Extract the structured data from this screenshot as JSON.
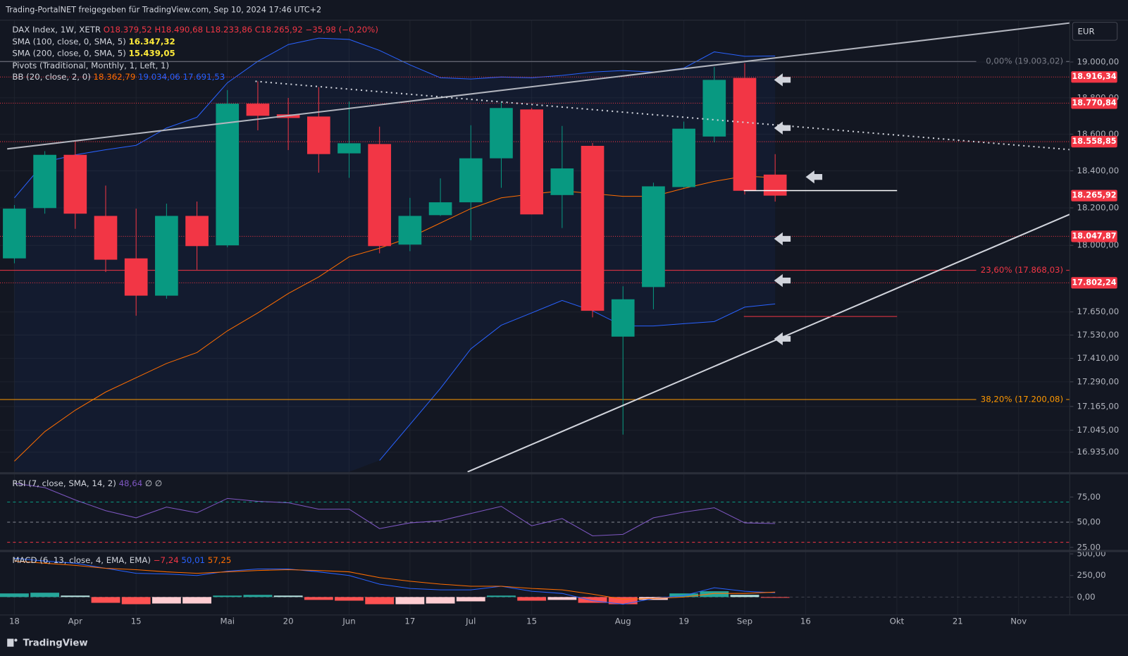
{
  "header": "Trading-PortalNET freigegeben für TradingView.com, Sep 10, 2024 17:46 UTC+2",
  "currency": "EUR",
  "footer": "TradingView",
  "chart_data": [
    {
      "type": "candlestick",
      "legend": {
        "symbol": "DAX Index, 1W, XETR",
        "open_label": "O18.379,52",
        "high_label": "H18.490,68",
        "low_label": "L18.233,86",
        "close_label": "C18.265,92",
        "change_label": "−35,98 (−0,20%)"
      },
      "indicators": [
        {
          "name": "SMA (100, close, 0, SMA, 5)",
          "values_text": [
            "16.347,32"
          ]
        },
        {
          "name": "SMA (200, close, 0, SMA, 5)",
          "values_text": [
            "15.439,05"
          ]
        },
        {
          "name": "Pivots (Traditional, Monthly, 1, Left, 1)",
          "values_text": []
        },
        {
          "name": "BB (20, close, 2, 0)",
          "values_text": [
            "18.362,79",
            "19.034,06",
            "17.691,53"
          ]
        }
      ],
      "categories": [
        "18",
        null,
        "Apr",
        null,
        "15",
        null,
        null,
        "Mai",
        null,
        "20",
        null,
        "Jun",
        null,
        "17",
        null,
        "Jul",
        null,
        "15",
        null,
        null,
        "Aug",
        null,
        "19",
        null,
        "Sep",
        null,
        "16",
        null,
        null,
        "Okt",
        null,
        "21",
        null,
        "Nov"
      ],
      "open": [
        17931,
        18199,
        18487,
        18157,
        17931,
        17735,
        18157,
        18000,
        18768,
        18709,
        18697,
        18495,
        18546,
        18004,
        18161,
        18230,
        18468,
        18736,
        18269,
        18536,
        17522,
        17780,
        18312,
        18587,
        18911,
        18379.52,
        null,
        null,
        null,
        null,
        null,
        null,
        null,
        null
      ],
      "high": [
        18215,
        18507,
        18558,
        18320,
        18196,
        18223,
        18234,
        18843,
        18892,
        18800,
        18860,
        18780,
        18641,
        18254,
        18359,
        18649,
        18780,
        18744,
        18645,
        18552,
        17784,
        18336,
        18669,
        18972,
        18993,
        18490.68,
        null,
        null,
        null,
        null,
        null,
        null,
        null,
        null
      ],
      "low": [
        17905,
        18169,
        18088,
        17859,
        17630,
        17719,
        17871,
        17990,
        18621,
        18513,
        18390,
        18362,
        17958,
        17969,
        18157,
        18027,
        18308,
        18165,
        18092,
        17622,
        17023,
        17664,
        18308,
        18555,
        18272,
        18233.86,
        null,
        null,
        null,
        null,
        null,
        null,
        null,
        null
      ],
      "close": [
        18196,
        18487,
        18169,
        17924,
        17735,
        18157,
        17996,
        18768,
        18701,
        18689,
        18491,
        18550,
        17996,
        18157,
        18230,
        18468,
        18744,
        18165,
        18413,
        17656,
        17716,
        18316,
        18630,
        18900,
        18292,
        18265.92,
        null,
        null,
        null,
        null,
        null,
        null,
        null,
        null
      ],
      "up_color": "#089981",
      "down_color": "#f23645",
      "bb_upper": [
        18254,
        18448,
        18487,
        18515,
        18539,
        18634,
        18693,
        18884,
        19004,
        19098,
        19134,
        19127,
        19065,
        18984,
        18912,
        18905,
        18916,
        18912,
        18925,
        18944,
        18952,
        18944,
        18966,
        19057,
        19032,
        19034.06,
        null,
        null,
        null,
        null,
        null,
        null,
        null,
        null
      ],
      "bb_middle": [
        16890,
        17038,
        17146,
        17238,
        17311,
        17384,
        17440,
        17552,
        17645,
        17746,
        17833,
        17939,
        17985,
        18042,
        18119,
        18196,
        18254,
        18274,
        18292,
        18277,
        18262,
        18262,
        18305,
        18343,
        18371,
        18362.79,
        null,
        null,
        null,
        null,
        null,
        null,
        null,
        null
      ],
      "bb_lower": [
        null,
        null,
        null,
        null,
        null,
        null,
        null,
        null,
        null,
        null,
        null,
        null,
        16894,
        17074,
        17256,
        17459,
        17581,
        17645,
        17710,
        17656,
        17577,
        17577,
        17589,
        17600,
        17675,
        17691.53,
        null,
        null,
        null,
        null,
        null,
        null,
        null,
        null
      ],
      "bb_band_color": "#2962ff",
      "bb_middle_color": "#ff6d00",
      "log_scale": true,
      "ylim": [
        16837,
        19236
      ],
      "yticks": [
        {
          "value": 19000,
          "label": "19.000,00"
        },
        {
          "value": 18800,
          "label": "18.800,00"
        },
        {
          "value": 18600,
          "label": "18.600,00"
        },
        {
          "value": 18400,
          "label": "18.400,00"
        },
        {
          "value": 18200,
          "label": "18.200,00"
        },
        {
          "value": 18000,
          "label": "18.000,00"
        },
        {
          "value": 17650,
          "label": "17.650,00"
        },
        {
          "value": 17530,
          "label": "17.530,00"
        },
        {
          "value": 17410,
          "label": "17.410,00"
        },
        {
          "value": 17290,
          "label": "17.290,00"
        },
        {
          "value": 17165,
          "label": "17.165,00"
        },
        {
          "value": 17045,
          "label": "17.045,00"
        },
        {
          "value": 16935,
          "label": "16.935,00"
        }
      ],
      "grid": true,
      "pivot_levels": [
        {
          "value": 18916.34,
          "label": "18.916,34"
        },
        {
          "value": 18770.84,
          "label": "18.770,84"
        },
        {
          "value": 18558.85,
          "label": "18.558,85"
        },
        {
          "value": 18047.87,
          "label": "18.047,87"
        },
        {
          "value": 17802.24,
          "label": "17.802,24"
        }
      ],
      "pivot_color": "#f23645",
      "fib_levels": [
        {
          "value": 19003.02,
          "label": "0,00% (19.003,02)",
          "color": "#787b86"
        },
        {
          "value": 17868.03,
          "label": "23,60% (17.868,03)",
          "color": "#f23645"
        },
        {
          "value": 17200.08,
          "label": "38,20% (17.200,08)",
          "color": "#ff9800"
        }
      ],
      "price_tag": {
        "value": 18265.92,
        "label": "18.265,92"
      }
    },
    {
      "type": "rsi",
      "name": "RSI (7, close, SMA, 14, 2)",
      "value_text": "48,64",
      "extra_text": "∅ ∅",
      "values": [
        88.6,
        84.3,
        72.1,
        61.4,
        54.3,
        65,
        59.3,
        73.6,
        70.7,
        69.3,
        62.9,
        62.9,
        43.6,
        49.3,
        51.4,
        58.6,
        65.7,
        46.4,
        53.6,
        36.4,
        37.9,
        54.3,
        60,
        64.3,
        49.3,
        48.64,
        null,
        null,
        null,
        null,
        null,
        null,
        null,
        null
      ],
      "color": "#7e57c2",
      "bands": [
        {
          "value": 70,
          "color": "#089981"
        },
        {
          "value": 50,
          "color": "#787b86"
        },
        {
          "value": 30,
          "color": "#f23645"
        }
      ],
      "ylim": [
        22.1,
        97.1
      ],
      "yticks": [
        {
          "value": 75,
          "label": "75,00"
        },
        {
          "value": 50,
          "label": "50,00"
        },
        {
          "value": 25,
          "label": "25,00"
        }
      ]
    },
    {
      "type": "macd",
      "name": "MACD (6, 13, close, 4, EMA, EMA)",
      "values_text": [
        "−7,24",
        "50,01",
        "57,25"
      ],
      "histogram": [
        42,
        50,
        17,
        -67,
        -83,
        -75,
        -75,
        17,
        25,
        17,
        -33,
        -42,
        -83,
        -83,
        -75,
        -50,
        17,
        -42,
        -33,
        -67,
        -83,
        -33,
        42,
        67,
        25,
        -7.24,
        null,
        null,
        null,
        null,
        null,
        null,
        null,
        null
      ],
      "series": [
        {
          "color": "#2962ff",
          "values": [
            450,
            417,
            392,
            333,
            275,
            267,
            250,
            300,
            325,
            325,
            292,
            250,
            150,
            100,
            83,
            83,
            125,
            67,
            42,
            -42,
            -83,
            -17,
            17,
            108,
            67,
            50.01,
            null,
            null,
            null,
            null,
            null,
            null,
            null,
            null
          ]
        },
        {
          "color": "#ff6d00",
          "values": [
            417,
            392,
            367,
            333,
            317,
            292,
            275,
            292,
            308,
            317,
            308,
            292,
            225,
            183,
            150,
            125,
            125,
            100,
            83,
            33,
            -25,
            -17,
            0,
            42,
            42,
            57.25,
            null,
            null,
            null,
            null,
            null,
            null,
            null,
            null
          ]
        }
      ],
      "hist_colors": [
        "#26a69a",
        "#b2dfdb",
        "#ff5252",
        "#ffcdd2"
      ],
      "ylim": [
        -208,
        517
      ],
      "yticks": [
        {
          "value": 500,
          "label": "500,00"
        },
        {
          "value": 250,
          "label": "250,00"
        },
        {
          "value": 0,
          "label": "0,00"
        }
      ]
    }
  ]
}
